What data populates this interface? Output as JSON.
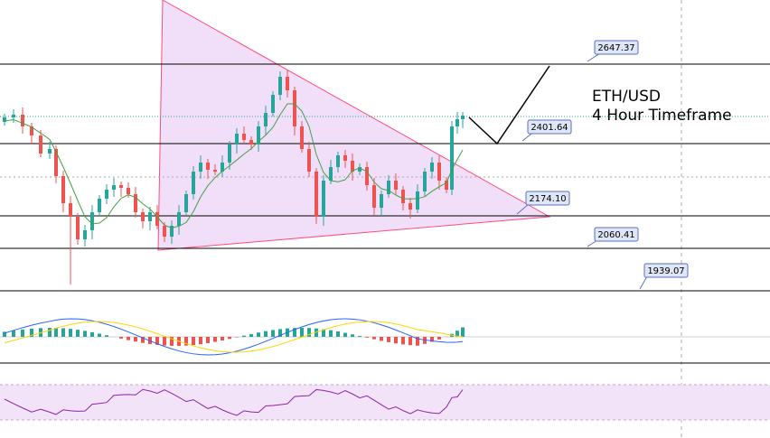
{
  "chart_data": {
    "type": "candlestick",
    "title_line1": "ETH/USD",
    "title_line2": "4 Hour Timeframe",
    "levels": [
      {
        "name": "resistance-2",
        "value": "2647.37"
      },
      {
        "name": "resistance-1",
        "value": "2401.64"
      },
      {
        "name": "support-1",
        "value": "2174.10"
      },
      {
        "name": "support-2",
        "value": "2060.41"
      },
      {
        "name": "support-3",
        "value": "1939.07"
      }
    ],
    "colors": {
      "up": "#26a69a",
      "down": "#ef5350",
      "triangle_fill": "#e8c8f5",
      "triangle_stroke": "#ff3d6e",
      "ma": "#43a047",
      "macd": "#2962ff",
      "signal": "#ffeb3b",
      "rsi": "#8e24aa",
      "rsi_band": "#f3e5f5"
    },
    "indicators": [
      "Moving Average",
      "MACD",
      "RSI"
    ]
  }
}
